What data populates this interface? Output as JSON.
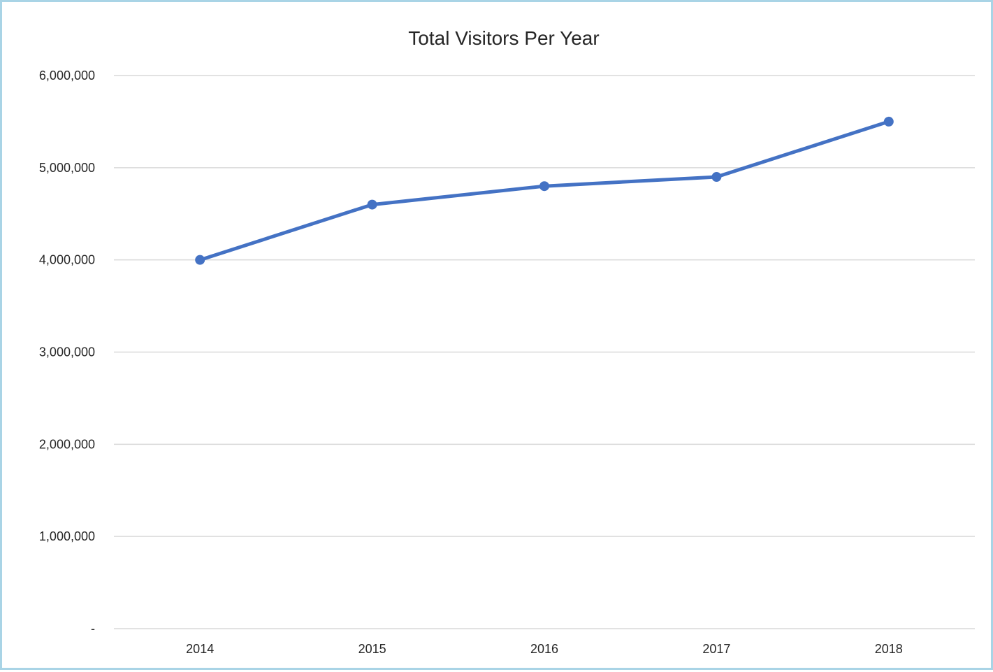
{
  "chart_data": {
    "type": "line",
    "title": "Total Visitors Per Year",
    "xlabel": "",
    "ylabel": "",
    "categories": [
      "2014",
      "2015",
      "2016",
      "2017",
      "2018"
    ],
    "series": [
      {
        "values": [
          4000000,
          4600000,
          4800000,
          4900000,
          5500000
        ]
      }
    ],
    "ylim": [
      0,
      6000000
    ],
    "y_ticks": [
      0,
      1000000,
      2000000,
      3000000,
      4000000,
      5000000,
      6000000
    ],
    "y_tick_labels": [
      "-",
      "1,000,000",
      "2,000,000",
      "3,000,000",
      "4,000,000",
      "5,000,000",
      "6,000,000"
    ],
    "grid": true,
    "legend": "none",
    "colors": {
      "line": "#4472c4",
      "grid": "#d9d9d9",
      "border": "#a9d4e6",
      "text": "#262626"
    }
  }
}
